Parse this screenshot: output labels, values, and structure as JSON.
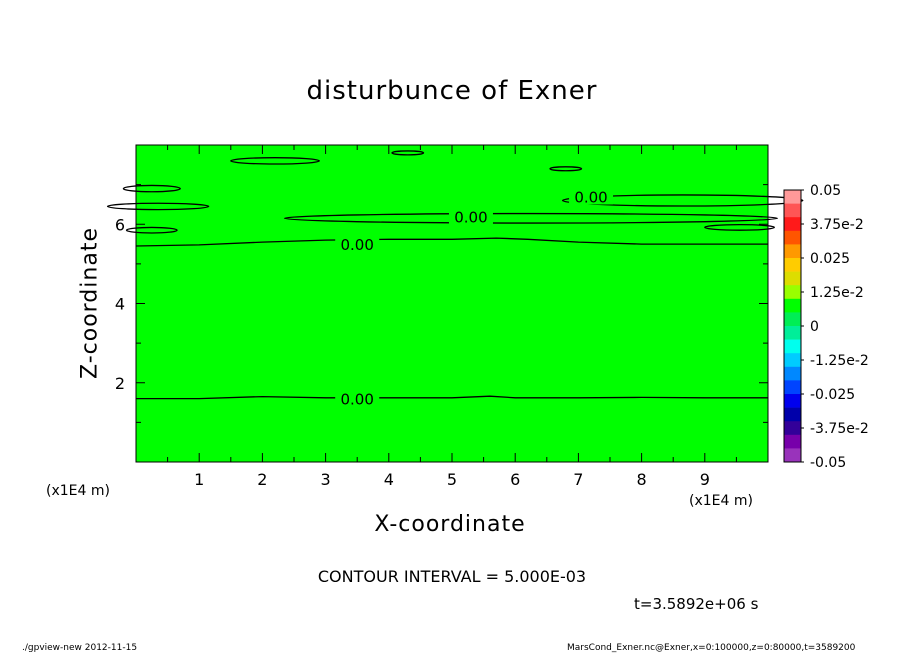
{
  "figure": {
    "title": "disturbunce of Exner",
    "xlabel": "X-coordinate",
    "ylabel": "Z-coordinate",
    "x_unit_left": "(x1E4 m)",
    "x_unit_right": "(x1E4 m)",
    "contour_interval": "CONTOUR INTERVAL = 5.000E-03",
    "time": "t=3.5892e+06 s",
    "footer_left": "./gpview-new   2012-11-15",
    "footer_right": "MarsCond_Exner.nc@Exner,x=0:100000,z=0:80000,t=3589200"
  },
  "chart_data": {
    "type": "heatmap",
    "title": "disturbunce of Exner",
    "xlabel": "X-coordinate",
    "ylabel": "Z-coordinate",
    "x_unit": "(x1E4 m)",
    "xlim": [
      0,
      10
    ],
    "ylim": [
      0,
      8
    ],
    "x_ticks": [
      1,
      2,
      3,
      4,
      5,
      6,
      7,
      8,
      9
    ],
    "y_ticks": [
      2,
      4,
      6
    ],
    "field_color": "#00ff00",
    "contour_interval": 0.005,
    "contour_labels": [
      {
        "text": "0.00",
        "x": 3.5,
        "z": 1.6
      },
      {
        "text": "0.00",
        "x": 3.5,
        "z": 5.5
      },
      {
        "text": "0.00",
        "x": 5.3,
        "z": 6.2
      },
      {
        "text": "0.00",
        "x": 7.2,
        "z": 6.7
      }
    ],
    "main_contours": [
      {
        "name": "lower",
        "points": [
          [
            0,
            1.6
          ],
          [
            1,
            1.6
          ],
          [
            2,
            1.65
          ],
          [
            3,
            1.62
          ],
          [
            4,
            1.62
          ],
          [
            5,
            1.62
          ],
          [
            5.6,
            1.66
          ],
          [
            6,
            1.62
          ],
          [
            7,
            1.62
          ],
          [
            8,
            1.63
          ],
          [
            9,
            1.62
          ],
          [
            10,
            1.62
          ]
        ]
      },
      {
        "name": "upper",
        "points": [
          [
            0,
            5.45
          ],
          [
            1,
            5.48
          ],
          [
            2,
            5.55
          ],
          [
            3,
            5.6
          ],
          [
            4,
            5.62
          ],
          [
            5,
            5.62
          ],
          [
            5.7,
            5.65
          ],
          [
            6.2,
            5.62
          ],
          [
            7,
            5.55
          ],
          [
            8,
            5.5
          ],
          [
            9,
            5.5
          ],
          [
            10,
            5.5
          ]
        ]
      }
    ],
    "closed_contours": [
      {
        "cx": 2.2,
        "cz": 7.6,
        "rx": 0.7,
        "rz": 0.08
      },
      {
        "cx": 4.3,
        "cz": 7.8,
        "rx": 0.25,
        "rz": 0.05
      },
      {
        "cx": 6.8,
        "cz": 7.4,
        "rx": 0.25,
        "rz": 0.05
      },
      {
        "cx": 0.25,
        "cz": 6.9,
        "rx": 0.45,
        "rz": 0.08
      },
      {
        "cx": 0.35,
        "cz": 6.45,
        "rx": 0.8,
        "rz": 0.08
      },
      {
        "cx": 0.25,
        "cz": 5.85,
        "rx": 0.4,
        "rz": 0.07
      },
      {
        "cx": 6.25,
        "cz": 6.15,
        "rx": 3.9,
        "rz": 0.12
      },
      {
        "cx": 8.65,
        "cz": 6.6,
        "rx": 1.9,
        "rz": 0.14
      },
      {
        "cx": 9.55,
        "cz": 5.92,
        "rx": 0.55,
        "rz": 0.07
      }
    ],
    "colorbar": {
      "levels": [
        0.05,
        0.0375,
        0.025,
        0.0125,
        0,
        -0.0125,
        -0.025,
        -0.0375,
        -0.05
      ],
      "labels": [
        "0.05",
        "3.75e-2",
        "0.025",
        "1.25e-2",
        "0",
        "-1.25e-2",
        "-0.025",
        "-3.75e-2",
        "-0.05"
      ],
      "colors_top_to_bottom": [
        "#ff9999",
        "#ff5555",
        "#ff1a1a",
        "#ff5500",
        "#ff9900",
        "#ffcc00",
        "#dddd00",
        "#99ff00",
        "#00ff00",
        "#00ee55",
        "#00ee99",
        "#00ffee",
        "#00ccff",
        "#0088ff",
        "#0044ff",
        "#0000ee",
        "#0000aa",
        "#330099",
        "#7700aa",
        "#9933bb"
      ]
    }
  }
}
